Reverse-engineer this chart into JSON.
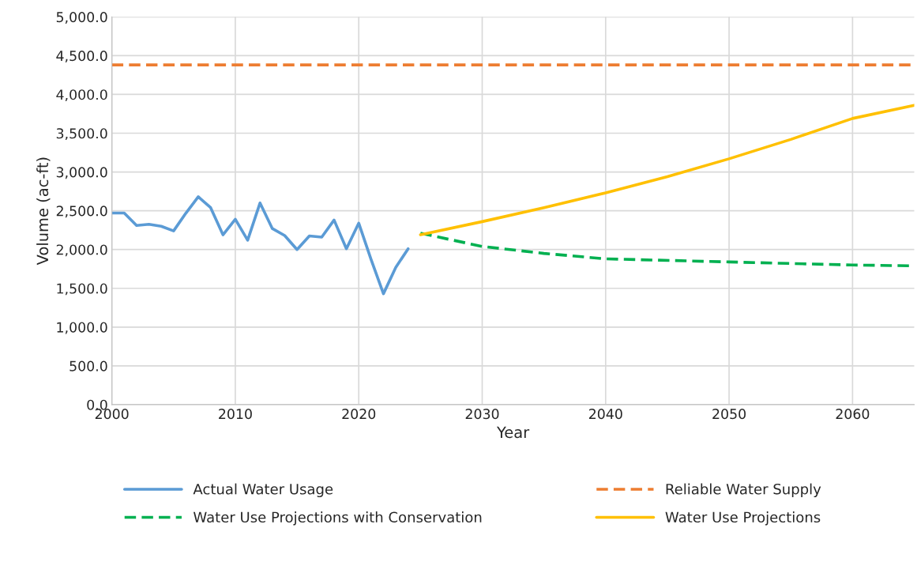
{
  "chart_data": {
    "type": "line",
    "xlabel": "Year",
    "ylabel": "Volume (ac-ft)",
    "xlim": [
      2000,
      2065
    ],
    "xticks": [
      2000,
      2010,
      2020,
      2030,
      2040,
      2050,
      2060
    ],
    "ylim": [
      0,
      5000
    ],
    "yticks": [
      {
        "value": 0,
        "label": "0.0"
      },
      {
        "value": 500,
        "label": "500.0"
      },
      {
        "value": 1000,
        "label": "1,000.0"
      },
      {
        "value": 1500,
        "label": "1,500.0"
      },
      {
        "value": 2000,
        "label": "2,000.0"
      },
      {
        "value": 2500,
        "label": "2,500.0"
      },
      {
        "value": 3000,
        "label": "3,000.0"
      },
      {
        "value": 3500,
        "label": "3,500.0"
      },
      {
        "value": 4000,
        "label": "4,000.0"
      },
      {
        "value": 4500,
        "label": "4,500.0"
      },
      {
        "value": 5000,
        "label": "5,000.0"
      }
    ],
    "grid": true,
    "legend": "bottom",
    "marker": "none",
    "series": [
      {
        "name": "Actual Water Usage",
        "color": "#5b9bd5",
        "line_style": "solid",
        "x": [
          2000,
          2001,
          2002,
          2003,
          2004,
          2005,
          2006,
          2007,
          2008,
          2009,
          2010,
          2011,
          2012,
          2013,
          2014,
          2015,
          2016,
          2017,
          2018,
          2019,
          2020,
          2021,
          2022,
          2023,
          2024
        ],
        "values": [
          2470,
          2470,
          2310,
          2325,
          2300,
          2240,
          2470,
          2680,
          2540,
          2190,
          2390,
          2120,
          2600,
          2270,
          2180,
          2000,
          2175,
          2160,
          2380,
          2010,
          2340,
          1870,
          1430,
          1770,
          2010
        ]
      },
      {
        "name": "Reliable Water Supply",
        "color": "#ed7d31",
        "line_style": "dashed",
        "x": [
          2000,
          2065
        ],
        "values": [
          4380,
          4380
        ]
      },
      {
        "name": "Water Use Projections with Conservation",
        "color": "#00b050",
        "line_style": "dashed",
        "x": [
          2025,
          2030,
          2035,
          2040,
          2050,
          2060,
          2065
        ],
        "values": [
          2210,
          2040,
          1950,
          1880,
          1840,
          1800,
          1790
        ]
      },
      {
        "name": "Water Use Projections",
        "color": "#ffc000",
        "line_style": "solid",
        "x": [
          2025,
          2030,
          2035,
          2040,
          2045,
          2050,
          2055,
          2060,
          2065
        ],
        "values": [
          2190,
          2360,
          2540,
          2730,
          2940,
          3170,
          3420,
          3690,
          3860
        ]
      }
    ]
  }
}
